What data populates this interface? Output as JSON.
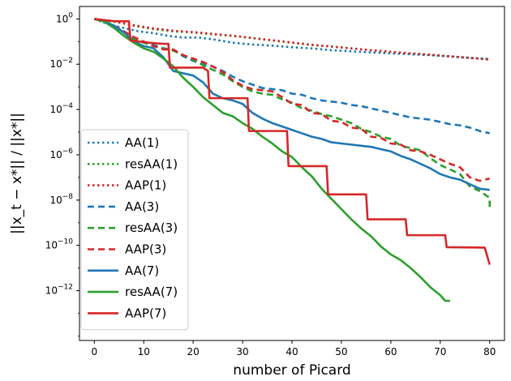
{
  "chart_data": {
    "type": "line",
    "title": "",
    "xlabel": "number of Picard",
    "ylabel": "||x_t − x*|| / ||x*||",
    "yscale": "log",
    "xlim": [
      -3,
      83
    ],
    "ylim_log10": [
      -14.2,
      0.55
    ],
    "xticks": [
      0,
      10,
      20,
      30,
      40,
      50,
      60,
      70,
      80
    ],
    "xtick_labels": [
      "0",
      "10",
      "20",
      "30",
      "40",
      "50",
      "60",
      "70",
      "80"
    ],
    "yticks_log10": [
      0,
      -2,
      -4,
      -6,
      -8,
      -10,
      -12
    ],
    "ytick_bases": [
      "10",
      "10",
      "10",
      "10",
      "10",
      "10",
      "10"
    ],
    "ytick_exponents": [
      "0",
      "−2",
      "−4",
      "−6",
      "−8",
      "−10",
      "−12"
    ],
    "legend_position": "lower-left",
    "colors": {
      "blue": "#1f77b4",
      "green": "#2ca02c",
      "red": "#d62728"
    },
    "series": [
      {
        "name": "AA(1)",
        "color": "#1f77b4",
        "style": "dotted",
        "points": [
          [
            0,
            0
          ],
          [
            3,
            -0.25
          ],
          [
            6,
            -0.4
          ],
          [
            9,
            -0.55
          ],
          [
            12,
            -0.63
          ],
          [
            15,
            -0.75
          ],
          [
            18,
            -0.82
          ],
          [
            21,
            -0.82
          ],
          [
            24,
            -0.9
          ],
          [
            28,
            -1.05
          ],
          [
            32,
            -1.13
          ],
          [
            36,
            -1.18
          ],
          [
            40,
            -1.25
          ],
          [
            44,
            -1.3
          ],
          [
            48,
            -1.38
          ],
          [
            52,
            -1.43
          ],
          [
            56,
            -1.48
          ],
          [
            60,
            -1.52
          ],
          [
            64,
            -1.56
          ],
          [
            68,
            -1.6
          ],
          [
            72,
            -1.66
          ],
          [
            76,
            -1.72
          ],
          [
            80,
            -1.77
          ]
        ]
      },
      {
        "name": "resAA(1)",
        "color": "#2ca02c",
        "style": "dotted",
        "points": [
          [
            0,
            0
          ],
          [
            4,
            -0.12
          ],
          [
            8,
            -0.3
          ],
          [
            12,
            -0.45
          ],
          [
            16,
            -0.55
          ],
          [
            20,
            -0.6
          ],
          [
            24,
            -0.68
          ],
          [
            28,
            -0.75
          ],
          [
            32,
            -0.85
          ],
          [
            36,
            -0.95
          ],
          [
            40,
            -1.05
          ],
          [
            44,
            -1.15
          ],
          [
            48,
            -1.22
          ],
          [
            52,
            -1.3
          ],
          [
            56,
            -1.38
          ],
          [
            60,
            -1.45
          ],
          [
            64,
            -1.52
          ],
          [
            68,
            -1.58
          ],
          [
            72,
            -1.65
          ],
          [
            76,
            -1.72
          ],
          [
            80,
            -1.78
          ]
        ]
      },
      {
        "name": "AAP(1)",
        "color": "#d62728",
        "style": "dotted",
        "points": [
          [
            0,
            0
          ],
          [
            4,
            -0.1
          ],
          [
            8,
            -0.28
          ],
          [
            12,
            -0.42
          ],
          [
            16,
            -0.52
          ],
          [
            20,
            -0.58
          ],
          [
            24,
            -0.66
          ],
          [
            28,
            -0.74
          ],
          [
            32,
            -0.84
          ],
          [
            36,
            -0.94
          ],
          [
            40,
            -1.04
          ],
          [
            44,
            -1.14
          ],
          [
            48,
            -1.22
          ],
          [
            52,
            -1.3
          ],
          [
            56,
            -1.38
          ],
          [
            60,
            -1.45
          ],
          [
            64,
            -1.52
          ],
          [
            68,
            -1.58
          ],
          [
            72,
            -1.65
          ],
          [
            76,
            -1.72
          ],
          [
            80,
            -1.8
          ]
        ]
      },
      {
        "name": "AA(3)",
        "color": "#1f77b4",
        "style": "dashed",
        "points": [
          [
            0,
            0
          ],
          [
            2,
            -0.1
          ],
          [
            4,
            -0.3
          ],
          [
            6,
            -0.55
          ],
          [
            8,
            -0.85
          ],
          [
            10,
            -1.0
          ],
          [
            12,
            -1.15
          ],
          [
            14,
            -1.3
          ],
          [
            16,
            -1.35
          ],
          [
            18,
            -1.65
          ],
          [
            20,
            -1.85
          ],
          [
            22,
            -2.0
          ],
          [
            24,
            -2.1
          ],
          [
            26,
            -2.3
          ],
          [
            28,
            -2.55
          ],
          [
            30,
            -2.75
          ],
          [
            32,
            -2.9
          ],
          [
            34,
            -3.05
          ],
          [
            36,
            -3.1
          ],
          [
            38,
            -3.15
          ],
          [
            40,
            -3.3
          ],
          [
            42,
            -3.35
          ],
          [
            44,
            -3.5
          ],
          [
            46,
            -3.6
          ],
          [
            48,
            -3.65
          ],
          [
            50,
            -3.7
          ],
          [
            52,
            -3.8
          ],
          [
            54,
            -3.85
          ],
          [
            56,
            -3.95
          ],
          [
            58,
            -4.05
          ],
          [
            60,
            -4.15
          ],
          [
            62,
            -4.25
          ],
          [
            64,
            -4.35
          ],
          [
            66,
            -4.4
          ],
          [
            68,
            -4.45
          ],
          [
            70,
            -4.55
          ],
          [
            72,
            -4.65
          ],
          [
            74,
            -4.7
          ],
          [
            76,
            -4.8
          ],
          [
            78,
            -4.95
          ],
          [
            80,
            -5.05
          ]
        ]
      },
      {
        "name": "resAA(3)",
        "color": "#2ca02c",
        "style": "dashed",
        "points": [
          [
            0,
            0
          ],
          [
            2,
            -0.1
          ],
          [
            4,
            -0.35
          ],
          [
            6,
            -0.6
          ],
          [
            8,
            -0.9
          ],
          [
            10,
            -1.05
          ],
          [
            12,
            -1.2
          ],
          [
            14,
            -1.3
          ],
          [
            16,
            -1.4
          ],
          [
            18,
            -1.6
          ],
          [
            20,
            -1.8
          ],
          [
            22,
            -2.05
          ],
          [
            24,
            -2.25
          ],
          [
            26,
            -2.45
          ],
          [
            28,
            -2.75
          ],
          [
            30,
            -3.0
          ],
          [
            32,
            -3.2
          ],
          [
            34,
            -3.3
          ],
          [
            36,
            -3.35
          ],
          [
            38,
            -3.55
          ],
          [
            40,
            -3.7
          ],
          [
            42,
            -3.95
          ],
          [
            44,
            -4.05
          ],
          [
            46,
            -4.2
          ],
          [
            48,
            -4.3
          ],
          [
            50,
            -4.45
          ],
          [
            52,
            -4.6
          ],
          [
            54,
            -4.85
          ],
          [
            56,
            -5.0
          ],
          [
            58,
            -5.2
          ],
          [
            60,
            -5.3
          ],
          [
            62,
            -5.6
          ],
          [
            64,
            -5.7
          ],
          [
            66,
            -5.8
          ],
          [
            68,
            -6.15
          ],
          [
            70,
            -6.45
          ],
          [
            72,
            -6.65
          ],
          [
            74,
            -6.85
          ],
          [
            76,
            -7.4
          ],
          [
            78,
            -7.6
          ],
          [
            80,
            -7.9
          ],
          [
            80,
            -8.3
          ]
        ]
      },
      {
        "name": "AAP(3)",
        "color": "#d62728",
        "style": "dashed",
        "points": [
          [
            0,
            0
          ],
          [
            2,
            -0.1
          ],
          [
            4,
            -0.3
          ],
          [
            6,
            -0.55
          ],
          [
            8,
            -0.8
          ],
          [
            10,
            -1.0
          ],
          [
            12,
            -1.2
          ],
          [
            14,
            -1.35
          ],
          [
            16,
            -1.35
          ],
          [
            18,
            -1.6
          ],
          [
            20,
            -1.75
          ],
          [
            22,
            -1.9
          ],
          [
            24,
            -2.1
          ],
          [
            26,
            -2.35
          ],
          [
            28,
            -2.7
          ],
          [
            30,
            -2.95
          ],
          [
            32,
            -3.1
          ],
          [
            34,
            -3.15
          ],
          [
            36,
            -3.2
          ],
          [
            38,
            -3.45
          ],
          [
            40,
            -3.75
          ],
          [
            42,
            -3.8
          ],
          [
            44,
            -4.15
          ],
          [
            46,
            -4.2
          ],
          [
            48,
            -4.5
          ],
          [
            50,
            -4.55
          ],
          [
            52,
            -4.8
          ],
          [
            54,
            -4.85
          ],
          [
            56,
            -5.2
          ],
          [
            58,
            -5.25
          ],
          [
            60,
            -5.5
          ],
          [
            62,
            -5.55
          ],
          [
            64,
            -5.8
          ],
          [
            66,
            -5.85
          ],
          [
            68,
            -6.0
          ],
          [
            70,
            -6.2
          ],
          [
            72,
            -6.4
          ],
          [
            74,
            -6.55
          ],
          [
            76,
            -7.0
          ],
          [
            78,
            -7.15
          ],
          [
            80,
            -7.05
          ]
        ]
      },
      {
        "name": "AA(7)",
        "color": "#1f77b4",
        "style": "solid",
        "points": [
          [
            0,
            0
          ],
          [
            2,
            -0.1
          ],
          [
            4,
            -0.3
          ],
          [
            6,
            -0.6
          ],
          [
            8,
            -1.0
          ],
          [
            10,
            -1.2
          ],
          [
            12,
            -1.3
          ],
          [
            14,
            -1.7
          ],
          [
            16,
            -2.3
          ],
          [
            18,
            -2.4
          ],
          [
            20,
            -2.5
          ],
          [
            22,
            -2.8
          ],
          [
            24,
            -3.3
          ],
          [
            26,
            -3.5
          ],
          [
            28,
            -3.6
          ],
          [
            30,
            -3.75
          ],
          [
            32,
            -4.15
          ],
          [
            34,
            -4.4
          ],
          [
            36,
            -4.6
          ],
          [
            38,
            -4.75
          ],
          [
            40,
            -4.9
          ],
          [
            42,
            -5.05
          ],
          [
            44,
            -5.2
          ],
          [
            46,
            -5.3
          ],
          [
            48,
            -5.45
          ],
          [
            50,
            -5.5
          ],
          [
            52,
            -5.55
          ],
          [
            54,
            -5.6
          ],
          [
            56,
            -5.65
          ],
          [
            58,
            -5.75
          ],
          [
            60,
            -5.85
          ],
          [
            62,
            -6.05
          ],
          [
            64,
            -6.2
          ],
          [
            66,
            -6.4
          ],
          [
            68,
            -6.6
          ],
          [
            70,
            -6.85
          ],
          [
            72,
            -7.0
          ],
          [
            74,
            -7.1
          ],
          [
            76,
            -7.3
          ],
          [
            78,
            -7.5
          ],
          [
            80,
            -7.55
          ]
        ]
      },
      {
        "name": "resAA(7)",
        "color": "#2ca02c",
        "style": "solid",
        "points": [
          [
            0,
            0
          ],
          [
            2,
            -0.12
          ],
          [
            4,
            -0.4
          ],
          [
            6,
            -0.75
          ],
          [
            8,
            -1.05
          ],
          [
            10,
            -1.3
          ],
          [
            12,
            -1.45
          ],
          [
            14,
            -1.75
          ],
          [
            16,
            -2.1
          ],
          [
            18,
            -2.6
          ],
          [
            20,
            -3.0
          ],
          [
            22,
            -3.45
          ],
          [
            24,
            -3.8
          ],
          [
            26,
            -4.15
          ],
          [
            28,
            -4.3
          ],
          [
            30,
            -4.6
          ],
          [
            32,
            -4.85
          ],
          [
            34,
            -5.2
          ],
          [
            36,
            -5.5
          ],
          [
            38,
            -5.85
          ],
          [
            40,
            -6.1
          ],
          [
            42,
            -6.55
          ],
          [
            44,
            -6.95
          ],
          [
            46,
            -7.5
          ],
          [
            48,
            -7.95
          ],
          [
            50,
            -8.4
          ],
          [
            52,
            -8.85
          ],
          [
            54,
            -9.25
          ],
          [
            56,
            -9.6
          ],
          [
            58,
            -10.05
          ],
          [
            60,
            -10.4
          ],
          [
            62,
            -10.65
          ],
          [
            64,
            -11.0
          ],
          [
            66,
            -11.4
          ],
          [
            68,
            -11.85
          ],
          [
            70,
            -12.2
          ],
          [
            71,
            -12.45
          ],
          [
            72,
            -12.45
          ]
        ]
      },
      {
        "name": "AAP(7)",
        "color": "#d62728",
        "style": "solid",
        "points": [
          [
            0,
            0
          ],
          [
            2,
            -0.05
          ],
          [
            4,
            -0.1
          ],
          [
            6,
            -0.1
          ],
          [
            7,
            -0.1
          ],
          [
            7.3,
            -0.95
          ],
          [
            11,
            -1.05
          ],
          [
            14,
            -1.1
          ],
          [
            15,
            -1.1
          ],
          [
            15.3,
            -2.15
          ],
          [
            22,
            -2.15
          ],
          [
            23,
            -2.3
          ],
          [
            23.3,
            -3.5
          ],
          [
            31,
            -3.5
          ],
          [
            31.3,
            -4.95
          ],
          [
            39,
            -4.95
          ],
          [
            39.3,
            -6.5
          ],
          [
            47,
            -6.5
          ],
          [
            47.3,
            -7.75
          ],
          [
            55,
            -7.75
          ],
          [
            55.3,
            -8.85
          ],
          [
            63,
            -8.85
          ],
          [
            63.3,
            -9.55
          ],
          [
            71,
            -9.55
          ],
          [
            71.3,
            -10.08
          ],
          [
            79,
            -10.1
          ],
          [
            80,
            -10.85
          ]
        ]
      }
    ]
  }
}
